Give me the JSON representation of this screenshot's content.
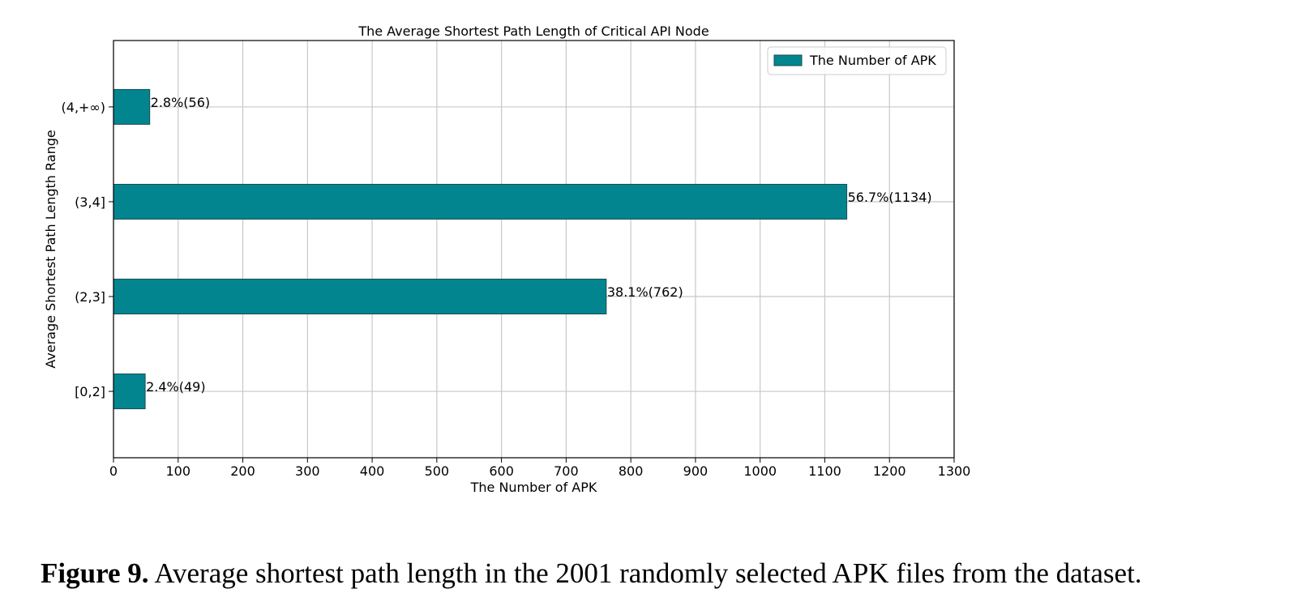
{
  "chart_data": {
    "type": "bar",
    "orientation": "horizontal",
    "title": "The Average Shortest Path Length of Critical API Node",
    "xlabel": "The Number of APK",
    "ylabel": "Average Shortest Path Length Range",
    "categories": [
      "[0,2]",
      "(2,3]",
      "(3,4]",
      "(4,+∞)"
    ],
    "series": [
      {
        "name": "The Number of APK",
        "values": [
          49,
          762,
          1134,
          56
        ]
      }
    ],
    "data_labels": [
      "2.4%(49)",
      "38.1%(762)",
      "56.7%(1134)",
      "2.8%(56)"
    ],
    "xlim": [
      0,
      1300
    ],
    "xticks": [
      0,
      100,
      200,
      300,
      400,
      500,
      600,
      700,
      800,
      900,
      1000,
      1100,
      1200,
      1300
    ],
    "grid": true,
    "legend_position": "top-right",
    "colors": {
      "bar_fill": "#038590",
      "bar_edge": "#1a4d52",
      "grid": "#c8c8c8",
      "axis": "#000000"
    }
  },
  "caption": {
    "label": "Figure 9.",
    "text": "Average shortest path length in the 2001 randomly selected APK files from the dataset."
  }
}
